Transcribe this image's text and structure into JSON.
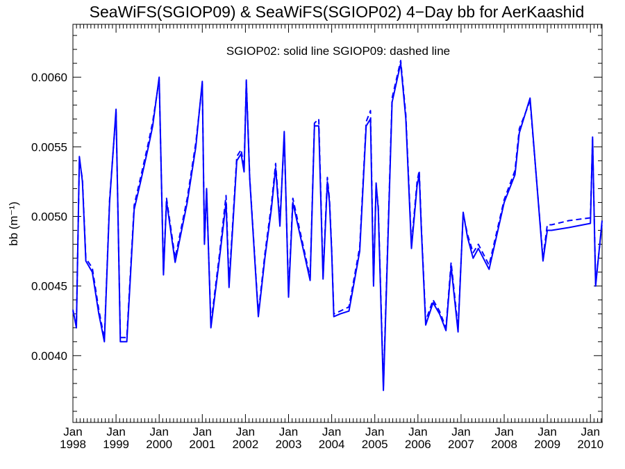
{
  "chart_data": {
    "type": "line",
    "title": "SeaWiFS(SGIOP09) & SeaWiFS(SGIOP02) 4−Day bb for AerKaashid",
    "annotation": "SGIOP02: solid line   SGIOP09: dashed line",
    "ylabel": "bb (m⁻¹)",
    "xlabel": "",
    "xlim": [
      1998.0,
      2010.27
    ],
    "ylim": [
      0.00352,
      0.00638
    ],
    "grid": false,
    "legend": "none",
    "line_color": "#0000ff",
    "y_ticks": [
      {
        "value": 0.004,
        "label": "0.0040"
      },
      {
        "value": 0.0045,
        "label": "0.0045"
      },
      {
        "value": 0.005,
        "label": "0.0050"
      },
      {
        "value": 0.0055,
        "label": "0.0055"
      },
      {
        "value": 0.006,
        "label": "0.0060"
      }
    ],
    "x_ticks": [
      {
        "value": 1998,
        "month": "Jan",
        "year": "1998"
      },
      {
        "value": 1999,
        "month": "Jan",
        "year": "1999"
      },
      {
        "value": 2000,
        "month": "Jan",
        "year": "2000"
      },
      {
        "value": 2001,
        "month": "Jan",
        "year": "2001"
      },
      {
        "value": 2002,
        "month": "Jan",
        "year": "2002"
      },
      {
        "value": 2003,
        "month": "Jan",
        "year": "2003"
      },
      {
        "value": 2004,
        "month": "Jan",
        "year": "2004"
      },
      {
        "value": 2005,
        "month": "Jan",
        "year": "2005"
      },
      {
        "value": 2006,
        "month": "Jan",
        "year": "2006"
      },
      {
        "value": 2007,
        "month": "Jan",
        "year": "2007"
      },
      {
        "value": 2008,
        "month": "Jan",
        "year": "2008"
      },
      {
        "value": 2009,
        "month": "Jan",
        "year": "2009"
      },
      {
        "value": 2010,
        "month": "Jan",
        "year": "2010"
      }
    ],
    "series": [
      {
        "name": "SGIOP02",
        "style": "solid",
        "x": [
          1998.0,
          1998.08,
          1998.15,
          1998.22,
          1998.3,
          1998.45,
          1998.6,
          1998.73,
          1998.85,
          1999.0,
          1999.1,
          1999.25,
          1999.42,
          1999.57,
          1999.75,
          1999.85,
          2000.0,
          2000.1,
          2000.17,
          2000.37,
          2000.65,
          2000.85,
          2001.0,
          2001.05,
          2001.1,
          2001.2,
          2001.4,
          2001.55,
          2001.62,
          2001.8,
          2001.9,
          2001.97,
          2002.02,
          2002.1,
          2002.3,
          2002.45,
          2002.6,
          2002.7,
          2002.8,
          2002.9,
          2003.0,
          2003.1,
          2003.5,
          2003.6,
          2003.7,
          2003.8,
          2003.9,
          2003.95,
          2004.0,
          2004.05,
          2004.2,
          2004.4,
          2004.65,
          2004.8,
          2004.9,
          2004.97,
          2005.03,
          2005.08,
          2005.2,
          2005.4,
          2005.6,
          2005.72,
          2005.85,
          2005.98,
          2006.03,
          2006.08,
          2006.18,
          2006.35,
          2006.5,
          2006.65,
          2006.77,
          2006.93,
          2007.05,
          2007.15,
          2007.28,
          2007.4,
          2007.65,
          2008.0,
          2008.25,
          2008.35,
          2008.6,
          2008.9,
          2009.0,
          2009.1,
          2009.5,
          2010.0,
          2010.05,
          2010.12,
          2010.27
        ],
        "y": [
          0.00433,
          0.0042,
          0.00543,
          0.00525,
          0.00468,
          0.0046,
          0.0043,
          0.0041,
          0.0051,
          0.00577,
          0.0041,
          0.0041,
          0.00505,
          0.00525,
          0.0055,
          0.00565,
          0.006,
          0.00458,
          0.00511,
          0.00467,
          0.0051,
          0.0055,
          0.00597,
          0.0048,
          0.0052,
          0.0042,
          0.0047,
          0.0051,
          0.00449,
          0.0054,
          0.00545,
          0.00532,
          0.00597,
          0.00527,
          0.00428,
          0.0047,
          0.00505,
          0.00535,
          0.00493,
          0.00561,
          0.00442,
          0.0051,
          0.00454,
          0.00565,
          0.00565,
          0.00455,
          0.00525,
          0.0051,
          0.00475,
          0.00428,
          0.0043,
          0.00432,
          0.00475,
          0.00565,
          0.0057,
          0.0045,
          0.00524,
          0.00505,
          0.00375,
          0.00582,
          0.0061,
          0.0057,
          0.00477,
          0.00522,
          0.0053,
          0.0049,
          0.00422,
          0.00438,
          0.0043,
          0.00418,
          0.00464,
          0.00417,
          0.00503,
          0.00485,
          0.0047,
          0.00477,
          0.00462,
          0.0051,
          0.0053,
          0.0056,
          0.00585,
          0.00468,
          0.0049,
          0.0049,
          0.00492,
          0.00495,
          0.00557,
          0.0045,
          0.00497
        ]
      },
      {
        "name": "SGIOP09",
        "style": "dashed",
        "x": [
          1998.0,
          1998.08,
          1998.15,
          1998.22,
          1998.3,
          1998.45,
          1998.6,
          1998.73,
          1998.85,
          1999.0,
          1999.1,
          1999.25,
          1999.42,
          1999.57,
          1999.75,
          1999.85,
          2000.0,
          2000.1,
          2000.17,
          2000.37,
          2000.65,
          2000.85,
          2001.0,
          2001.05,
          2001.1,
          2001.2,
          2001.4,
          2001.55,
          2001.62,
          2001.8,
          2001.9,
          2001.97,
          2002.02,
          2002.1,
          2002.3,
          2002.45,
          2002.6,
          2002.7,
          2002.8,
          2002.9,
          2003.0,
          2003.1,
          2003.5,
          2003.6,
          2003.7,
          2003.8,
          2003.9,
          2003.95,
          2004.0,
          2004.05,
          2004.2,
          2004.4,
          2004.65,
          2004.8,
          2004.9,
          2004.97,
          2005.03,
          2005.08,
          2005.2,
          2005.4,
          2005.6,
          2005.72,
          2005.85,
          2005.98,
          2006.03,
          2006.08,
          2006.18,
          2006.35,
          2006.5,
          2006.65,
          2006.77,
          2006.93,
          2007.05,
          2007.15,
          2007.28,
          2007.4,
          2007.65,
          2008.0,
          2008.25,
          2008.35,
          2008.6,
          2008.9,
          2009.0,
          2009.1,
          2009.5,
          2010.0,
          2010.05,
          2010.12,
          2010.27
        ],
        "y": [
          0.00432,
          0.00422,
          0.0054,
          0.00527,
          0.0047,
          0.00463,
          0.00433,
          0.00412,
          0.00512,
          0.00575,
          0.00413,
          0.00413,
          0.00508,
          0.00528,
          0.00553,
          0.00568,
          0.00598,
          0.0046,
          0.00513,
          0.0047,
          0.00513,
          0.00553,
          0.00595,
          0.00482,
          0.00518,
          0.00423,
          0.00473,
          0.00515,
          0.00452,
          0.00543,
          0.00548,
          0.00535,
          0.00598,
          0.00528,
          0.0043,
          0.00473,
          0.00508,
          0.00538,
          0.00496,
          0.00558,
          0.00445,
          0.00513,
          0.00456,
          0.00567,
          0.0057,
          0.00457,
          0.00528,
          0.00512,
          0.00477,
          0.0043,
          0.00432,
          0.00435,
          0.00478,
          0.00568,
          0.00576,
          0.00453,
          0.00522,
          0.00507,
          0.00378,
          0.00585,
          0.00612,
          0.00573,
          0.0048,
          0.00525,
          0.00533,
          0.00492,
          0.00425,
          0.0044,
          0.00432,
          0.0042,
          0.00467,
          0.0042,
          0.00502,
          0.00487,
          0.00474,
          0.0048,
          0.00465,
          0.00512,
          0.00533,
          0.00563,
          0.00583,
          0.0047,
          0.00494,
          0.00494,
          0.00497,
          0.00499,
          0.00555,
          0.00452,
          0.00495
        ]
      }
    ]
  }
}
